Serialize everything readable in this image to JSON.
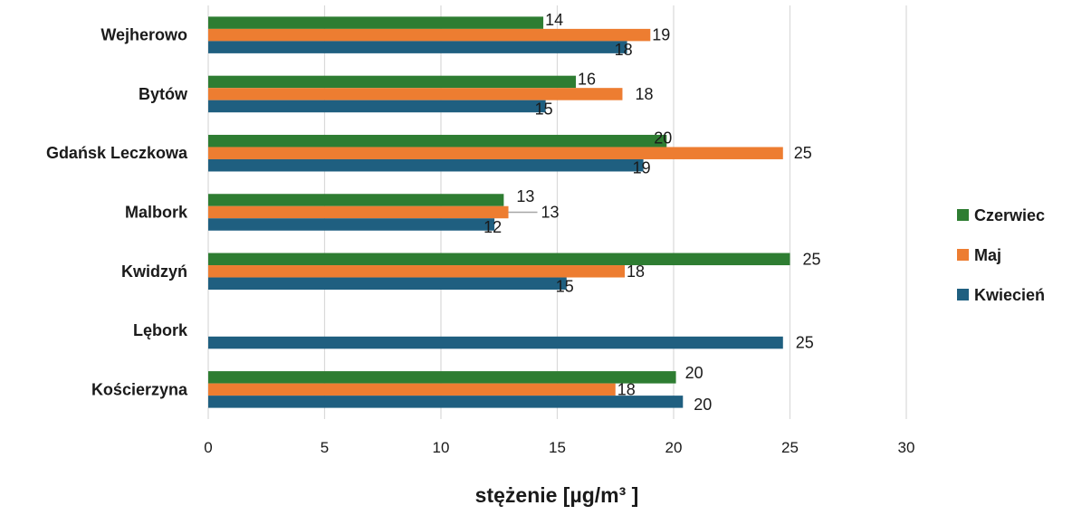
{
  "chart_data": {
    "type": "bar",
    "orientation": "horizontal",
    "categories": [
      "Wejherowo",
      "Bytów",
      "Gdańsk Leczkowa",
      "Malbork",
      "Kwidzyń",
      "Lębork",
      "Kościerzyna"
    ],
    "series": [
      {
        "name": "Czerwiec",
        "color": "#2e7d32",
        "values": [
          14.4,
          15.8,
          19.7,
          12.7,
          25.0,
          null,
          20.1
        ],
        "labels": [
          "14",
          "16",
          "20",
          "13",
          "25",
          "",
          "20"
        ]
      },
      {
        "name": "Maj",
        "color": "#ed7d31",
        "values": [
          19.0,
          17.8,
          24.7,
          12.9,
          17.9,
          null,
          17.5
        ],
        "labels": [
          "19",
          "18",
          "25",
          "13",
          "18",
          "",
          "18"
        ]
      },
      {
        "name": "Kwiecień",
        "color": "#1f5f80",
        "values": [
          18.0,
          14.5,
          18.7,
          12.3,
          15.4,
          24.7,
          20.4
        ],
        "labels": [
          "18",
          "15",
          "19",
          "12",
          "15",
          "25",
          "20"
        ]
      }
    ],
    "xlabel": "stężenie [µg/m³ ]",
    "ylabel": "",
    "title": "",
    "xlim": [
      0,
      30
    ],
    "xticks": [
      "0",
      "5",
      "10",
      "15",
      "20",
      "25",
      "30"
    ],
    "grid": "vertical",
    "legend": "right"
  }
}
